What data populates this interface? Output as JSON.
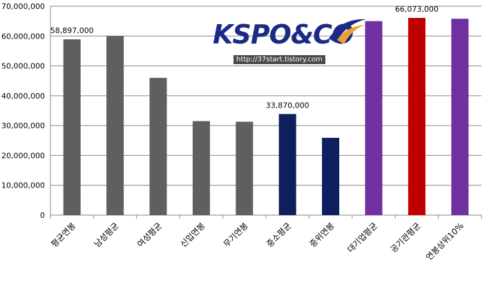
{
  "chart_data": {
    "type": "bar",
    "categories": [
      "평균연봉",
      "남성평균",
      "여성평균",
      "신입연봉",
      "무기연봉",
      "중소평균",
      "중위연봉",
      "대기업평균",
      "공기관평균",
      "연봉상위10%"
    ],
    "values": [
      58897000,
      60000000,
      46000000,
      31500000,
      31300000,
      33870000,
      25900000,
      65000000,
      66073000,
      65800000
    ],
    "bar_colors": [
      "#5f5f5f",
      "#5f5f5f",
      "#5f5f5f",
      "#5f5f5f",
      "#5f5f5f",
      "#0d1f5c",
      "#0d1f5c",
      "#7030a0",
      "#c00000",
      "#7030a0"
    ],
    "data_labels": [
      {
        "index": 0,
        "text": "58,897,000"
      },
      {
        "index": 5,
        "text": "33,870,000"
      },
      {
        "index": 8,
        "text": "66,073,000"
      }
    ],
    "yticks": [
      "0",
      "10,000,000",
      "20,000,000",
      "30,000,000",
      "40,000,000",
      "50,000,000",
      "60,000,000",
      "70,000,000"
    ],
    "ylim": [
      0,
      70000000
    ],
    "grid": "horizontal",
    "title": "",
    "xlabel": "",
    "ylabel": ""
  },
  "logo": {
    "brand": "KSPO&CO",
    "url": "http://37start.tistory.com"
  },
  "colors": {
    "gridline": "#868686",
    "logo_blue": "#1b2a86",
    "logo_orange": "#f0a030"
  }
}
